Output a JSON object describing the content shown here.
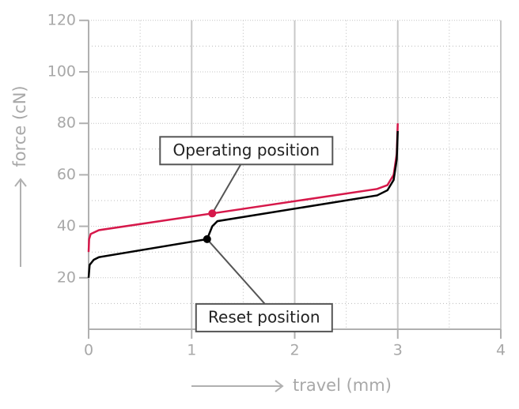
{
  "chart_data": {
    "type": "line",
    "x_label": "travel (mm)",
    "y_label": "force (cN)",
    "xlim": [
      0,
      4
    ],
    "xticks": [
      0,
      1,
      2,
      3,
      4
    ],
    "x_minor_ticks": [
      0.5,
      1.5,
      2.5,
      3.5
    ],
    "ylim": [
      0,
      120
    ],
    "yticks": [
      20,
      40,
      60,
      80,
      100,
      120
    ],
    "y_minor_ticks": [
      10,
      30,
      50,
      70,
      90,
      110
    ],
    "grid": true,
    "series": [
      {
        "color": "#d6184a",
        "x": [
          0,
          0.005,
          0.02,
          0.1,
          1.2,
          2.8,
          2.9,
          2.96,
          2.99,
          3.0
        ],
        "values": [
          30,
          35,
          37,
          38.5,
          45,
          54.5,
          56,
          60,
          68,
          80
        ]
      },
      {
        "color": "#000000",
        "x": [
          0,
          0.01,
          0.05,
          0.1,
          1.15,
          1.2,
          1.25,
          2.8,
          2.9,
          2.96,
          2.99,
          3.0
        ],
        "values": [
          20,
          25,
          27,
          28,
          35,
          40,
          42,
          52,
          54,
          58,
          66,
          77
        ]
      }
    ],
    "annotations": [
      {
        "text": "Operating position",
        "x": 1.2,
        "y": 45,
        "color": "#d6184a"
      },
      {
        "text": "Reset position",
        "x": 1.15,
        "y": 35,
        "color": "#000000"
      }
    ]
  }
}
